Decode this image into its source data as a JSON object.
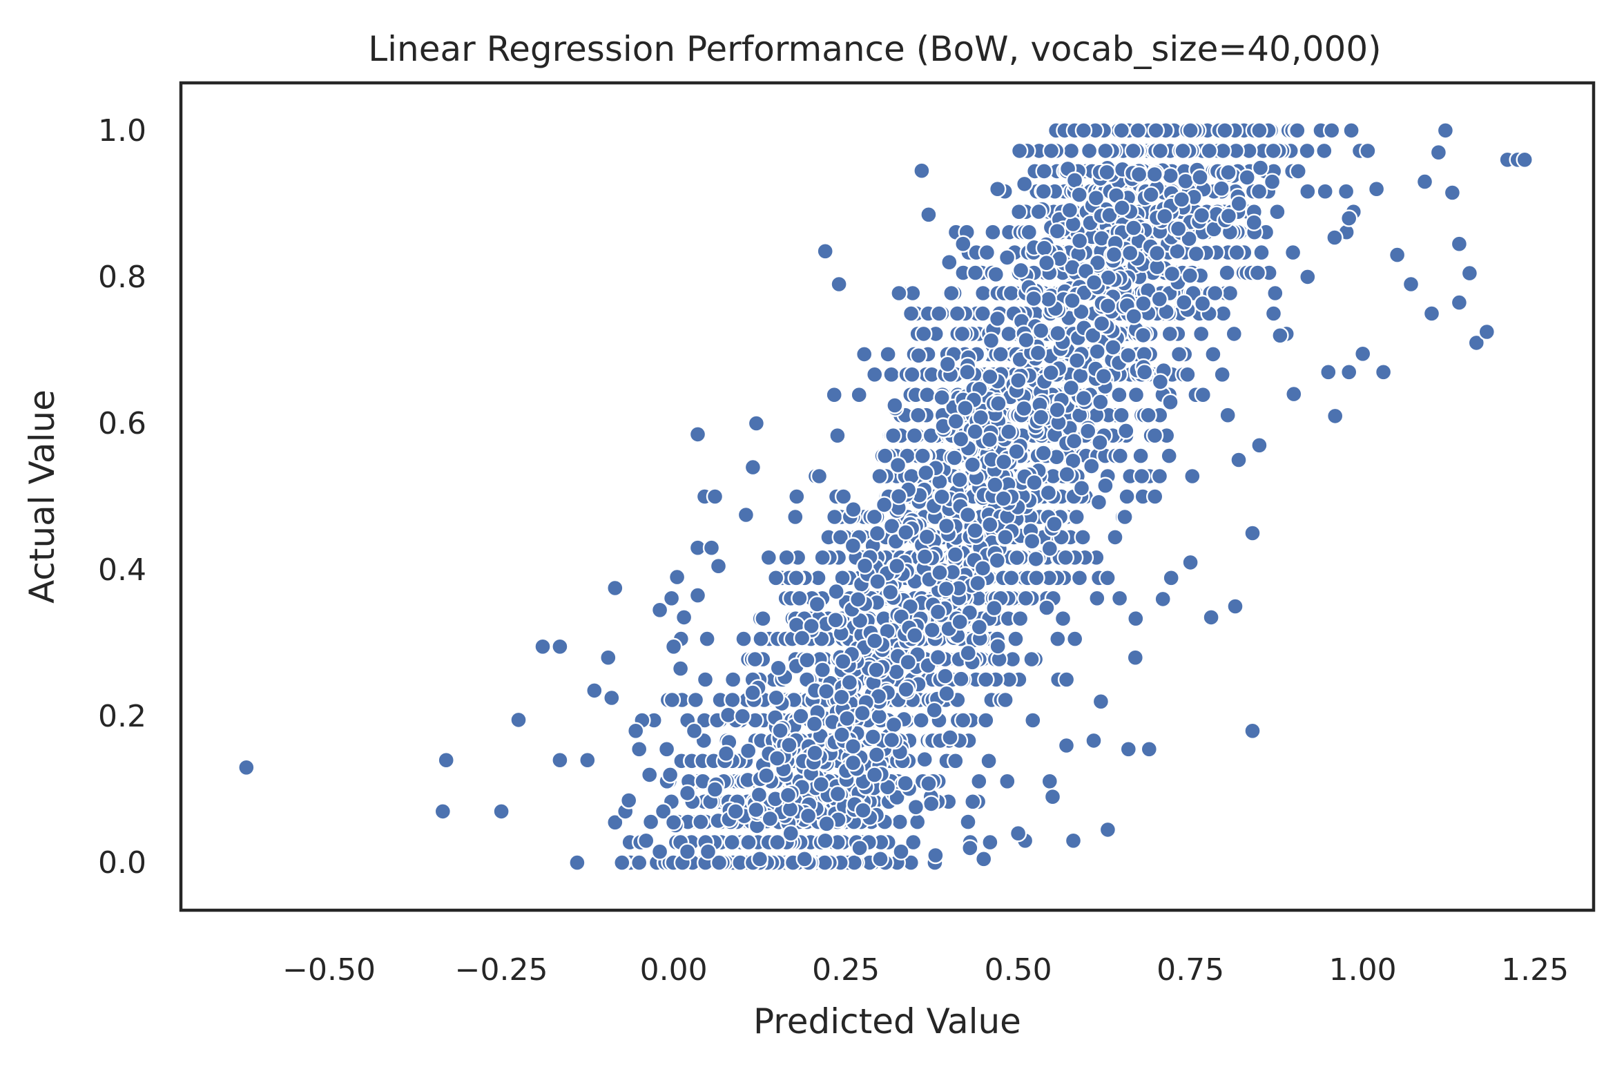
{
  "chart_data": {
    "type": "scatter",
    "title": "Linear Regression Performance (BoW, vocab_size=40,000)",
    "xlabel": "Predicted Value",
    "ylabel": "Actual Value",
    "xlim": [
      -0.715,
      1.335
    ],
    "ylim": [
      -0.065,
      1.065
    ],
    "xticks": [
      -0.5,
      -0.25,
      0.0,
      0.25,
      0.5,
      0.75,
      1.0,
      1.25
    ],
    "xtick_labels": [
      "−0.50",
      "−0.25",
      "0.00",
      "0.25",
      "0.50",
      "0.75",
      "1.00",
      "1.25"
    ],
    "yticks": [
      0.0,
      0.2,
      0.4,
      0.6,
      0.8,
      1.0
    ],
    "ytick_labels": [
      "0.0",
      "0.2",
      "0.4",
      "0.6",
      "0.8",
      "1.0"
    ],
    "grid": false,
    "legend": "none",
    "colors": {
      "marker": "#4c72b0",
      "marker_edge": "#ffffff",
      "frame": "#262626",
      "text": "#262626"
    },
    "series": [
      {
        "points": [
          [
            -0.62,
            0.13
          ],
          [
            -0.33,
            0.14
          ],
          [
            -0.335,
            0.07
          ],
          [
            -0.25,
            0.07
          ],
          [
            -0.225,
            0.195
          ],
          [
            -0.19,
            0.295
          ],
          [
            -0.165,
            0.295
          ],
          [
            -0.165,
            0.14
          ],
          [
            -0.125,
            0.14
          ],
          [
            -0.115,
            0.235
          ],
          [
            -0.14,
            0.0
          ],
          [
            -0.095,
            0.28
          ],
          [
            -0.09,
            0.225
          ],
          [
            -0.085,
            0.375
          ],
          [
            -0.085,
            0.055
          ],
          [
            -0.075,
            0.0
          ],
          [
            -0.07,
            0.07
          ],
          [
            -0.065,
            0.085
          ],
          [
            -0.055,
            0.18
          ],
          [
            -0.05,
            0.155
          ],
          [
            -0.05,
            0.0
          ],
          [
            -0.04,
            0.03
          ],
          [
            -0.035,
            0.12
          ],
          [
            -0.02,
            0.015
          ],
          [
            -0.02,
            0.345
          ],
          [
            -0.015,
            0.07
          ],
          [
            -0.01,
            0.155
          ],
          [
            -0.005,
            0.12
          ],
          [
            0.0,
            0.055
          ],
          [
            0.0,
            0.295
          ],
          [
            0.005,
            0.39
          ],
          [
            0.01,
            0.265
          ],
          [
            0.015,
            0.335
          ],
          [
            0.02,
            0.015
          ],
          [
            0.02,
            0.095
          ],
          [
            0.03,
            0.18
          ],
          [
            0.035,
            0.43
          ],
          [
            0.035,
            0.365
          ],
          [
            0.035,
            0.585
          ],
          [
            0.045,
            0.5
          ],
          [
            0.05,
            0.015
          ],
          [
            0.055,
            0.43
          ],
          [
            0.06,
            0.5
          ],
          [
            0.065,
            0.405
          ],
          [
            -0.01,
            0.155
          ],
          [
            0.105,
            0.475
          ],
          [
            0.115,
            0.54
          ],
          [
            0.12,
            0.6
          ],
          [
            0.22,
            0.835
          ],
          [
            0.24,
            0.79
          ],
          [
            0.36,
            0.945
          ],
          [
            0.37,
            0.885
          ],
          [
            0.4,
            0.82
          ],
          [
            0.42,
            0.845
          ],
          [
            0.47,
            0.92
          ],
          [
            0.63,
            0.045
          ],
          [
            0.84,
            0.18
          ],
          [
            0.69,
            0.155
          ],
          [
            0.66,
            0.155
          ],
          [
            0.96,
            0.61
          ],
          [
            1.12,
            1.0
          ],
          [
            1.11,
            0.97
          ],
          [
            1.21,
            0.96
          ],
          [
            1.225,
            0.96
          ],
          [
            1.235,
            0.96
          ],
          [
            1.165,
            0.71
          ],
          [
            1.18,
            0.725
          ],
          [
            1.14,
            0.765
          ],
          [
            1.155,
            0.805
          ],
          [
            1.13,
            0.915
          ],
          [
            1.14,
            0.845
          ],
          [
            1.1,
            0.75
          ],
          [
            1.07,
            0.79
          ],
          [
            1.09,
            0.93
          ],
          [
            1.03,
            0.67
          ],
          [
            1.0,
            0.695
          ],
          [
            0.98,
            0.67
          ],
          [
            0.95,
            0.67
          ],
          [
            0.595,
            1.0
          ],
          [
            0.65,
            1.0
          ],
          [
            0.7,
            1.0
          ],
          [
            0.75,
            1.0
          ],
          [
            0.8,
            1.0
          ],
          [
            0.85,
            1.0
          ],
          [
            0.905,
            1.0
          ],
          [
            0.955,
            1.0
          ],
          [
            0.78,
            0.335
          ],
          [
            0.815,
            0.35
          ],
          [
            0.84,
            0.45
          ],
          [
            0.58,
            0.03
          ],
          [
            0.51,
            0.03
          ],
          [
            0.45,
            0.005
          ],
          [
            0.3,
            0.005
          ],
          [
            0.19,
            0.005
          ],
          [
            0.125,
            0.005
          ],
          [
            0.82,
            0.55
          ],
          [
            0.85,
            0.57
          ],
          [
            0.9,
            0.64
          ],
          [
            0.88,
            0.72
          ],
          [
            0.92,
            0.8
          ],
          [
            0.98,
            0.88
          ],
          [
            1.05,
            0.83
          ],
          [
            1.02,
            0.92
          ],
          [
            0.71,
            0.36
          ],
          [
            0.75,
            0.41
          ],
          [
            0.67,
            0.28
          ],
          [
            0.62,
            0.22
          ],
          [
            0.57,
            0.16
          ],
          [
            0.55,
            0.09
          ],
          [
            0.5,
            0.04
          ],
          [
            0.43,
            0.02
          ],
          [
            0.38,
            0.01
          ],
          [
            0.33,
            0.015
          ],
          [
            0.27,
            0.02
          ],
          [
            0.22,
            0.03
          ],
          [
            0.17,
            0.04
          ],
          [
            0.14,
            0.06
          ],
          [
            0.09,
            0.07
          ],
          [
            0.06,
            0.1
          ],
          [
            0.1,
            0.2
          ]
        ],
        "clusters": [
          {
            "x_start": 0.04,
            "slope": 0.72,
            "base": 0.0,
            "sigma": 0.12,
            "n": 1500,
            "y_step": 0.0
          }
        ]
      }
    ]
  }
}
